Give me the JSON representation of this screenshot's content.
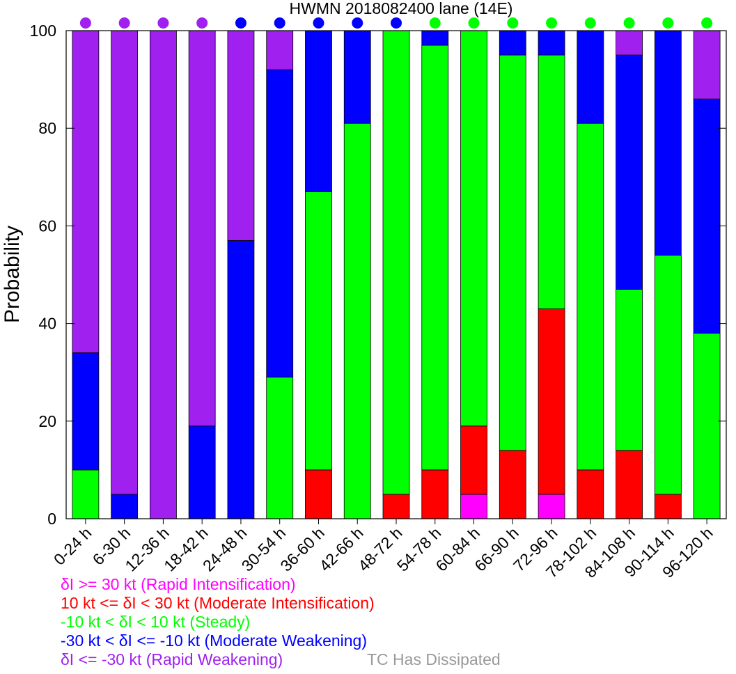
{
  "chart_data": {
    "type": "bar",
    "stacked": true,
    "title": "HWMN 2018082400 lane (14E)",
    "ylabel": "Probability",
    "ylim": [
      0,
      100
    ],
    "yticks": [
      "0",
      "20",
      "40",
      "60",
      "80",
      "100"
    ],
    "categories": [
      "0-24 h",
      "6-30 h",
      "12-36 h",
      "18-42 h",
      "24-48 h",
      "30-54 h",
      "36-60 h",
      "42-66 h",
      "48-72 h",
      "54-78 h",
      "60-84 h",
      "66-90 h",
      "72-96 h",
      "78-102 h",
      "84-108 h",
      "90-114 h",
      "96-120 h"
    ],
    "series": [
      {
        "name": "δI >= 30 kt (Rapid Intensification)",
        "color": "#ff00ff",
        "values": [
          0,
          0,
          0,
          0,
          0,
          0,
          0,
          0,
          0,
          0,
          5,
          0,
          5,
          0,
          0,
          0,
          0
        ]
      },
      {
        "name": "10 kt <= δI < 30 kt (Moderate Intensification)",
        "color": "#ff0000",
        "values": [
          0,
          0,
          0,
          0,
          0,
          0,
          10,
          0,
          5,
          10,
          14,
          14,
          38,
          10,
          14,
          5,
          0
        ]
      },
      {
        "name": "-10 kt < δI < 10 kt (Steady)",
        "color": "#00ff00",
        "values": [
          10,
          0,
          0,
          0,
          0,
          29,
          57,
          81,
          95,
          87,
          81,
          81,
          52,
          71,
          33,
          49,
          38
        ]
      },
      {
        "name": "-30 kt < δI <= -10 kt (Moderate Weakening)",
        "color": "#0000ff",
        "values": [
          24,
          5,
          0,
          19,
          57,
          63,
          33,
          19,
          0,
          3,
          0,
          5,
          5,
          19,
          48,
          46,
          48
        ]
      },
      {
        "name": "δI <= -30 kt (Rapid Weakening)",
        "color": "#a020f0",
        "values": [
          66,
          95,
          100,
          81,
          43,
          8,
          0,
          0,
          0,
          0,
          0,
          0,
          0,
          0,
          5,
          0,
          14
        ]
      }
    ],
    "dot_colors": [
      "#a020f0",
      "#a020f0",
      "#a020f0",
      "#a020f0",
      "#0000ff",
      "#0000ff",
      "#0000ff",
      "#0000ff",
      "#0000ff",
      "#00ff00",
      "#00ff00",
      "#00ff00",
      "#00ff00",
      "#00ff00",
      "#00ff00",
      "#00ff00",
      "#00ff00"
    ],
    "extra_legend": {
      "text": "TC Has Dissipated",
      "color": "#999999"
    },
    "grid": false
  }
}
